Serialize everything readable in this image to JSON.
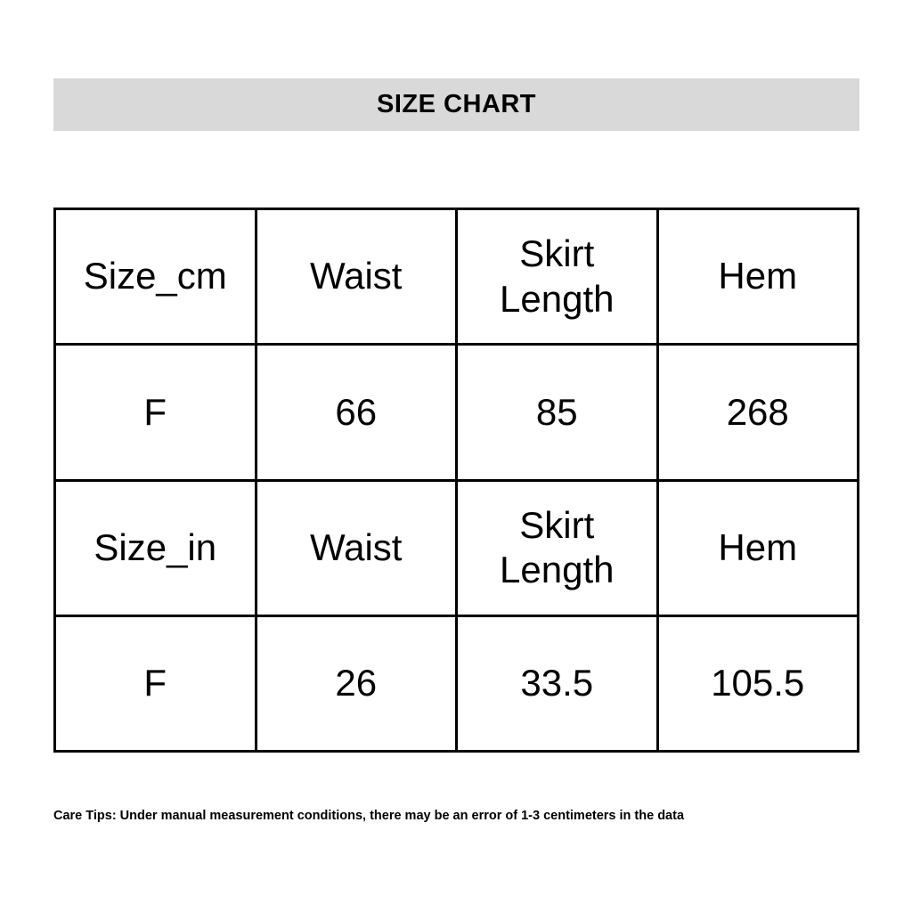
{
  "title": "SIZE CHART",
  "table": {
    "rows": [
      [
        "Size_cm",
        "Waist",
        "Skirt Length",
        "Hem"
      ],
      [
        "F",
        "66",
        "85",
        "268"
      ],
      [
        "Size_in",
        "Waist",
        "Skirt Length",
        "Hem"
      ],
      [
        "F",
        "26",
        "33.5",
        "105.5"
      ]
    ]
  },
  "footer": "Care Tips: Under manual measurement conditions, there may be an error of 1-3 centimeters in the data"
}
